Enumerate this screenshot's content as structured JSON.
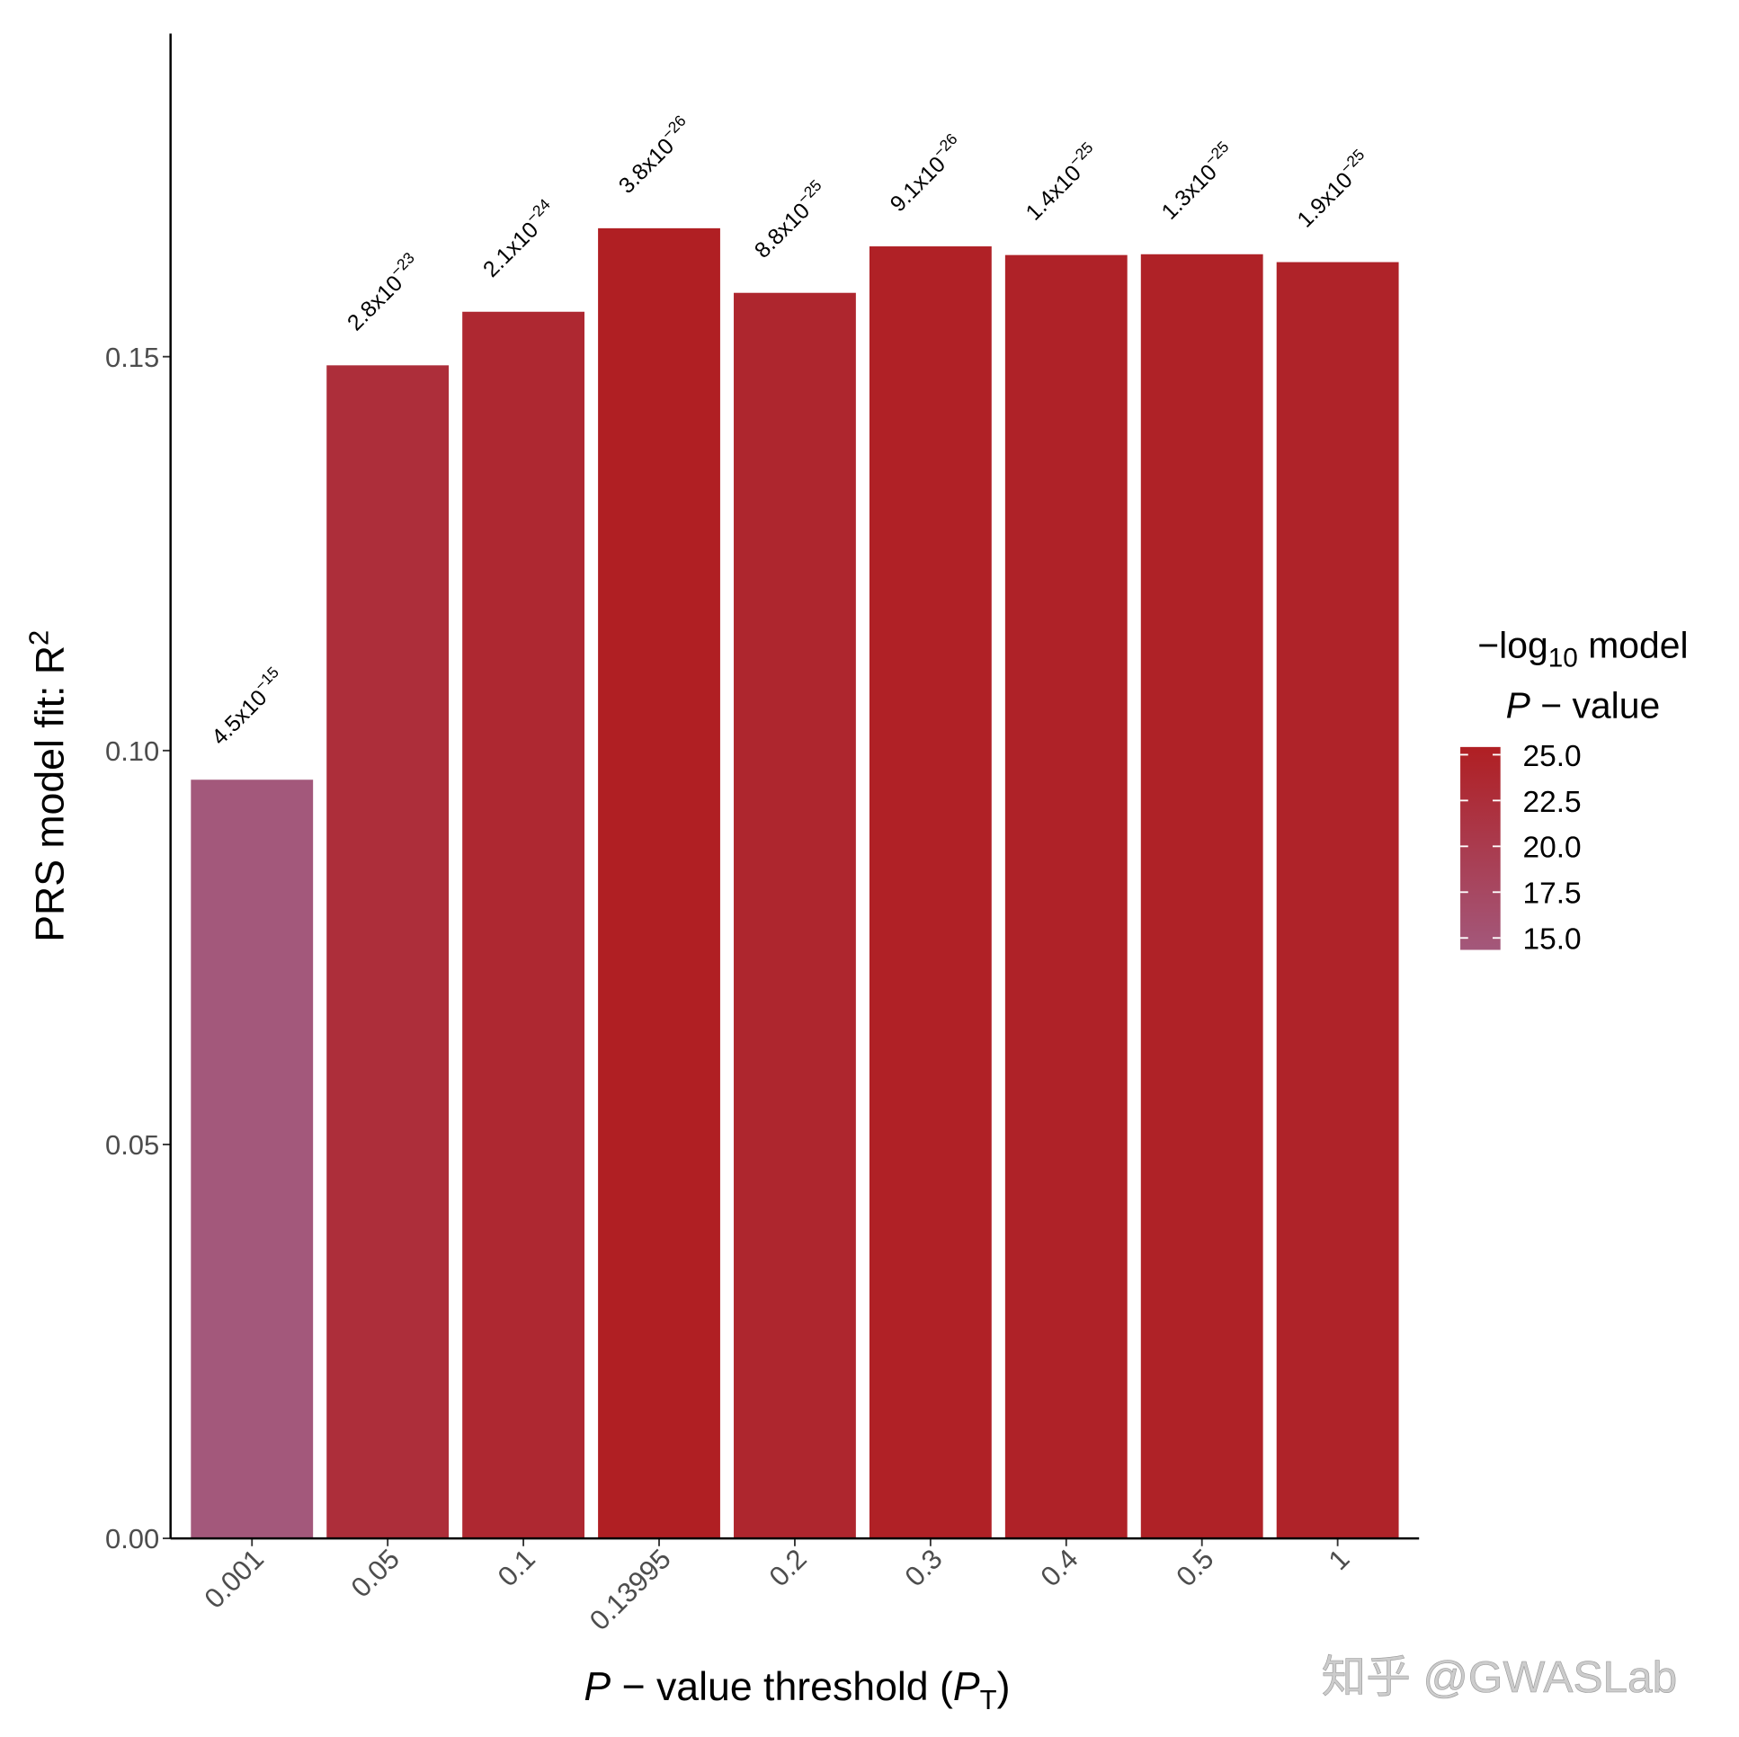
{
  "chart_data": {
    "type": "bar",
    "y_label": {
      "text": "PRS model fit:  R",
      "sup": "2"
    },
    "x_label": {
      "italic": "P",
      "text": " − value threshold (",
      "italic2": "P",
      "sub": "T",
      "close": ")"
    },
    "categories": [
      "0.001",
      "0.05",
      "0.1",
      "0.13995",
      "0.2",
      "0.3",
      "0.4",
      "0.5",
      "1"
    ],
    "values": [
      0.0963,
      0.1489,
      0.1557,
      0.1663,
      0.1581,
      0.164,
      0.1629,
      0.163,
      0.162
    ],
    "p_values": [
      4.5e-15,
      2.8e-23,
      2.1e-24,
      3.8e-26,
      8.8e-25,
      9.1e-26,
      1.4e-25,
      1.3e-25,
      1.9e-25
    ],
    "p_value_labels": [
      {
        "base": "4.5x10",
        "exp": "−15"
      },
      {
        "base": "2.8x10",
        "exp": "−23"
      },
      {
        "base": "2.1x10",
        "exp": "−24"
      },
      {
        "base": "3.8x10",
        "exp": "−26"
      },
      {
        "base": "8.8x10",
        "exp": "−25"
      },
      {
        "base": "9.1x10",
        "exp": "−26"
      },
      {
        "base": "1.4x10",
        "exp": "−25"
      },
      {
        "base": "1.3x10",
        "exp": "−25"
      },
      {
        "base": "1.9x10",
        "exp": "−25"
      }
    ],
    "ylim": [
      0,
      0.191
    ],
    "yticks": [
      {
        "value": 0,
        "label": "0.00"
      },
      {
        "value": 0.05,
        "label": "0.05"
      },
      {
        "value": 0.1,
        "label": "0.10"
      },
      {
        "value": 0.15,
        "label": "0.15"
      }
    ],
    "grid": false,
    "colorbar": {
      "title": {
        "prefix": "−log",
        "sub": "10",
        "rest": " model",
        "italic": "P",
        "rest2": " − value"
      },
      "lim": [
        14.35,
        25.42
      ],
      "colors": [
        "#a3587b",
        "#b01f23"
      ],
      "ticks": [
        {
          "value": 15,
          "label": "15.0"
        },
        {
          "value": 17.5,
          "label": "17.5"
        },
        {
          "value": 20,
          "label": "20.0"
        },
        {
          "value": 22.5,
          "label": "22.5"
        },
        {
          "value": 25,
          "label": "25.0"
        }
      ]
    },
    "watermark": "知乎 @GWASLab"
  }
}
